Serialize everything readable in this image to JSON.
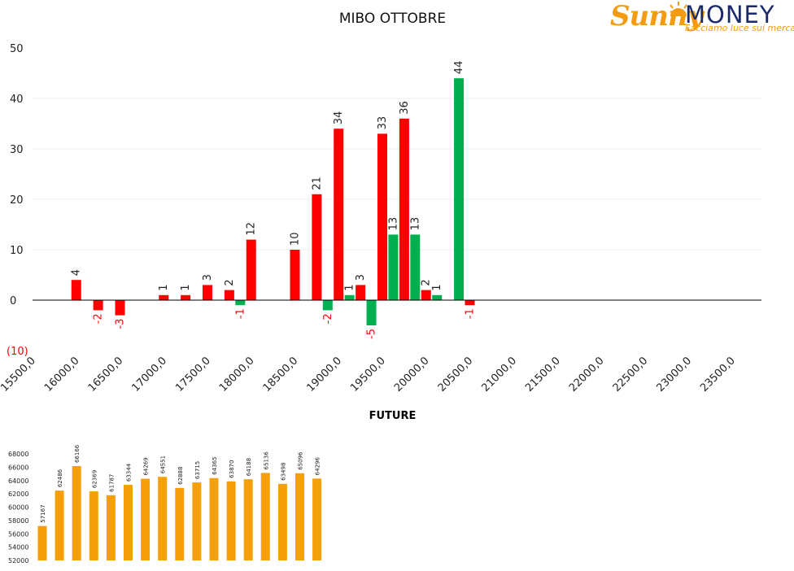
{
  "logo": {
    "brand_script": "Sunny",
    "brand_money": "MONEY",
    "tagline": "Facciamo luce sui mercati",
    "colors": {
      "orange": "#f39c12",
      "navy": "#1a2a6c"
    }
  },
  "colors": {
    "red": "#ff0000",
    "green": "#00b050",
    "orange": "#f5a00a",
    "negative_label": "#ff0000"
  },
  "chart_data": [
    {
      "type": "bar",
      "title": "MIBO OTTOBRE",
      "categories": [
        "15500,0",
        "16000,0",
        "16500,0",
        "17000,0",
        "17500,0",
        "18000,0",
        "18500,0",
        "19000,0",
        "19500,0",
        "20000,0",
        "20500,0",
        "21000,0",
        "21500,0",
        "22000,0",
        "22500,0",
        "23000,0",
        "23500,0"
      ],
      "ylim": [
        -10,
        50
      ],
      "yticks": [
        "(10)",
        "0",
        "10",
        "20",
        "30",
        "40",
        "50"
      ],
      "grid": true,
      "bars": [
        {
          "x": 16000,
          "value": 4,
          "color": "red"
        },
        {
          "x": 16250,
          "value": -2,
          "color": "red"
        },
        {
          "x": 16500,
          "value": -3,
          "color": "red"
        },
        {
          "x": 17000,
          "value": 1,
          "color": "red"
        },
        {
          "x": 17250,
          "value": 1,
          "color": "red"
        },
        {
          "x": 17500,
          "value": 3,
          "color": "red"
        },
        {
          "x": 17750,
          "value": 2,
          "color": "red"
        },
        {
          "x": 17875,
          "value": -1,
          "color": "green"
        },
        {
          "x": 18000,
          "value": 12,
          "color": "red"
        },
        {
          "x": 18500,
          "value": 10,
          "color": "red"
        },
        {
          "x": 18750,
          "value": 21,
          "color": "red"
        },
        {
          "x": 18875,
          "value": -2,
          "color": "green"
        },
        {
          "x": 19000,
          "value": 34,
          "color": "red"
        },
        {
          "x": 19125,
          "value": 1,
          "color": "green"
        },
        {
          "x": 19250,
          "value": 3,
          "color": "red"
        },
        {
          "x": 19375,
          "value": -5,
          "color": "green"
        },
        {
          "x": 19500,
          "value": 33,
          "color": "red"
        },
        {
          "x": 19625,
          "value": 13,
          "color": "green"
        },
        {
          "x": 19750,
          "value": 36,
          "color": "red"
        },
        {
          "x": 19875,
          "value": 13,
          "color": "green"
        },
        {
          "x": 20000,
          "value": 2,
          "color": "red"
        },
        {
          "x": 20125,
          "value": 1,
          "color": "green"
        },
        {
          "x": 20375,
          "value": 44,
          "color": "green"
        },
        {
          "x": 20500,
          "value": -1,
          "color": "red"
        }
      ]
    },
    {
      "type": "bar",
      "title": "FUTURE",
      "values": [
        57167,
        62486,
        66166,
        62369,
        61787,
        63344,
        64269,
        64551,
        62888,
        63715,
        64365,
        63870,
        64188,
        65136,
        63498,
        65096,
        64296
      ],
      "ylim": [
        52000,
        68000
      ],
      "yticks": [
        "52000",
        "54000",
        "56000",
        "58000",
        "60000",
        "62000",
        "64000",
        "66000",
        "68000"
      ],
      "color": "orange"
    }
  ]
}
